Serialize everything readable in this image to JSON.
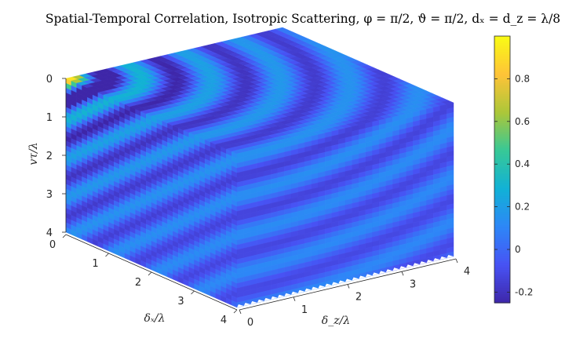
{
  "chart_data": {
    "type": "heatmap",
    "surface_style": "3d-surface",
    "title": "Spatial-Temporal Correlation, Isotropic Scattering, φ = π/2, ϑ = π/2, dₓ = d_z = λ/8",
    "vtau_label": "vτ/λ",
    "dx_label": "δₓ/λ",
    "dz_label": "δ_z/λ",
    "vtau_range": [
      0,
      4
    ],
    "dx_range": [
      0,
      4
    ],
    "dz_range": [
      0,
      4
    ],
    "vtau_ticks": [
      "0",
      "1",
      "2",
      "3",
      "4"
    ],
    "dx_ticks": [
      "0",
      "1",
      "2",
      "3",
      "4"
    ],
    "dz_ticks": [
      "0",
      "1",
      "2",
      "3",
      "4"
    ],
    "value_range": [
      -0.25,
      1.0
    ],
    "grid_step": 0.125,
    "model": "J0(2π·sqrt((δx+vτ)² + δz²)) — isotropic scattering correlation",
    "colorbar": {
      "colormap": "parula",
      "position": "right",
      "range": [
        -0.25,
        1.0
      ],
      "ticks": [
        "-0.2",
        "0",
        "0.2",
        "0.4",
        "0.6",
        "0.8"
      ],
      "tick_values": [
        -0.2,
        0,
        0.2,
        0.4,
        0.6,
        0.8
      ]
    },
    "grid": false
  }
}
